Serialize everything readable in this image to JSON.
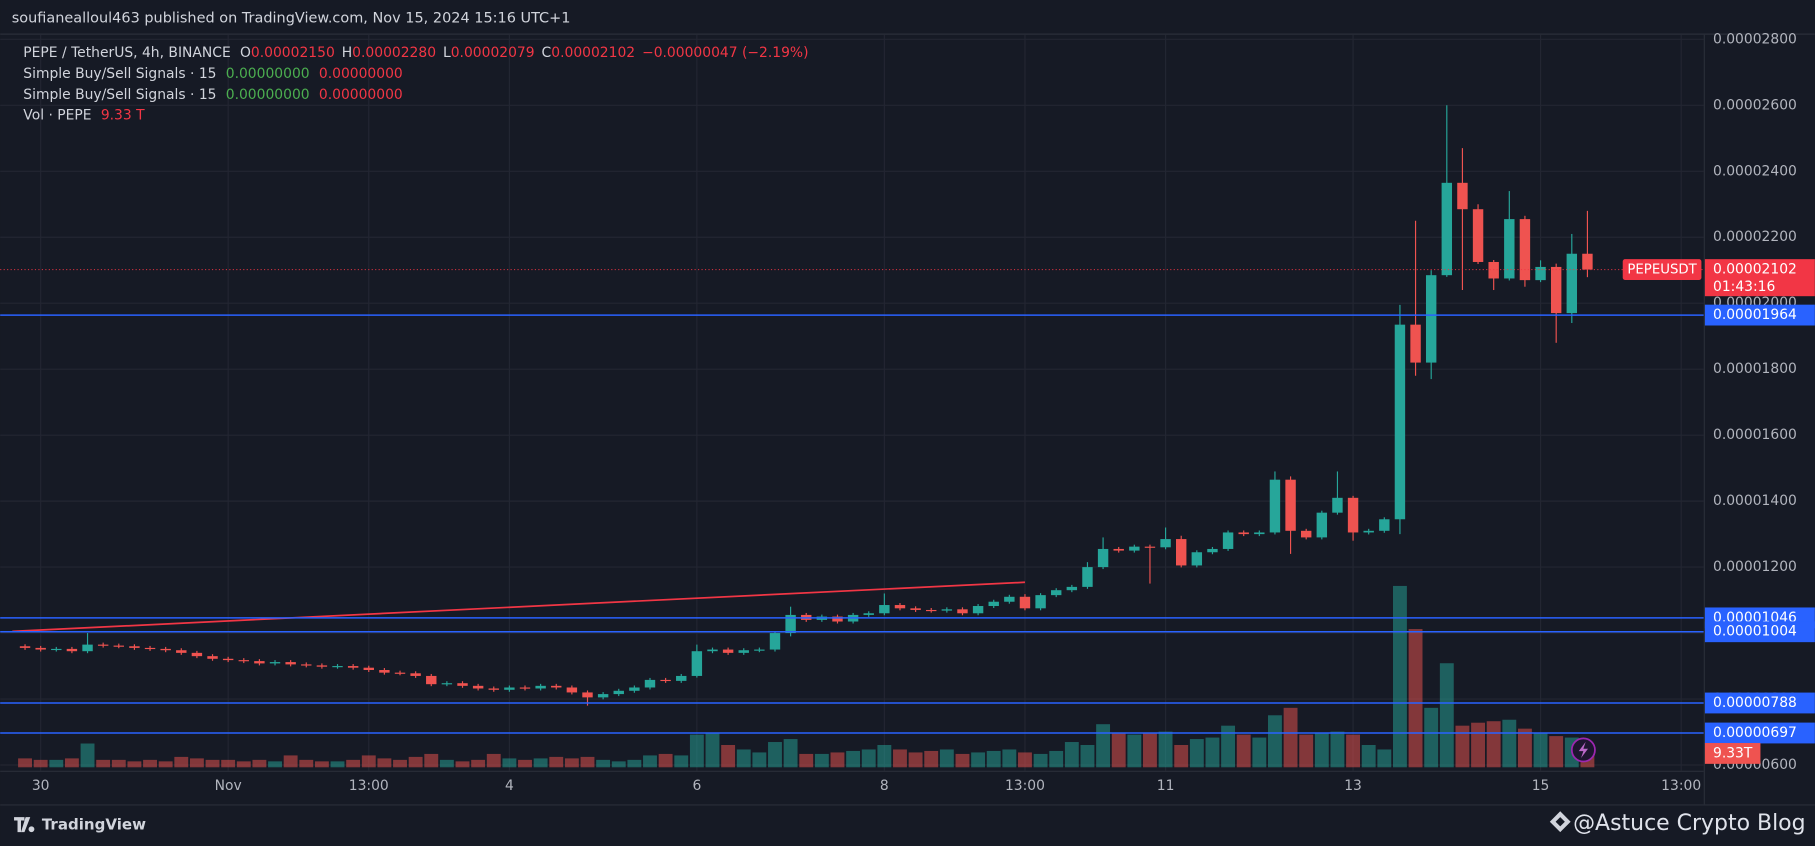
{
  "header": "soufianealloul463 published on TradingView.com, Nov 15, 2024 15:16 UTC+1",
  "chart_data": {
    "type": "candlestick",
    "legend": {
      "title": "PEPE / TetherUS, 4h, BINANCE",
      "fields": [
        {
          "key": "O",
          "value": "0.00002150"
        },
        {
          "key": "H",
          "value": "0.00002280"
        },
        {
          "key": "L",
          "value": "0.00002079"
        },
        {
          "key": "C",
          "value": "0.00002102"
        }
      ],
      "change": "−0.00000047 (−2.19%)"
    },
    "signals": [
      {
        "name": "Simple Buy/Sell Signals · 15",
        "values": [
          "0.00000000",
          "0.00000000"
        ]
      },
      {
        "name": "Simple Buy/Sell Signals · 15",
        "values": [
          "0.00000000",
          "0.00000000"
        ]
      }
    ],
    "volume_name": "Vol · PEPE",
    "volume_value_label": "9.33 T",
    "volume_tag_label": "9.33T",
    "categories": [
      null,
      "30",
      null,
      null,
      null,
      null,
      null,
      null,
      null,
      null,
      null,
      null,
      null,
      "Nov",
      null,
      null,
      null,
      null,
      null,
      null,
      null,
      null,
      "13:00",
      null,
      null,
      null,
      null,
      null,
      null,
      null,
      null,
      "4",
      null,
      null,
      null,
      null,
      null,
      null,
      null,
      null,
      null,
      null,
      null,
      "6",
      null,
      null,
      null,
      null,
      null,
      null,
      null,
      null,
      null,
      null,
      null,
      "8",
      null,
      null,
      null,
      null,
      null,
      null,
      null,
      null,
      "13:00",
      null,
      null,
      null,
      null,
      null,
      null,
      null,
      null,
      "11",
      null,
      null,
      null,
      null,
      null,
      null,
      null,
      null,
      null,
      null,
      null,
      "13",
      null,
      null,
      null,
      null,
      null,
      null,
      null,
      null,
      null,
      null,
      null,
      "15",
      null,
      null,
      null,
      null,
      null,
      null,
      null,
      null,
      "13:00"
    ],
    "ohlc": {
      "open": [
        9.6e-06,
        9.55e-06,
        9.5e-06,
        9.52e-06,
        9.45e-06,
        9.65e-06,
        9.62e-06,
        9.6e-06,
        9.55e-06,
        9.52e-06,
        9.48e-06,
        9.4e-06,
        9.3e-06,
        9.22e-06,
        9.18e-06,
        9.15e-06,
        9.08e-06,
        9.12e-06,
        9.05e-06,
        9.02e-06,
        8.98e-06,
        9e-06,
        8.95e-06,
        8.88e-06,
        8.8e-06,
        8.78e-06,
        8.7e-06,
        8.45e-06,
        8.48e-06,
        8.4e-06,
        8.32e-06,
        8.28e-06,
        8.35e-06,
        8.32e-06,
        8.4e-06,
        8.35e-06,
        8.2e-06,
        8.05e-06,
        8.15e-06,
        8.25e-06,
        8.35e-06,
        8.58e-06,
        8.55e-06,
        8.7e-06,
        9.45e-06,
        9.5e-06,
        9.4e-06,
        9.48e-06,
        9.5e-06,
        1e-05,
        1.055e-05,
        1.04e-05,
        1.05e-05,
        1.035e-05,
        1.055e-05,
        1.06e-05,
        1.085e-05,
        1.075e-05,
        1.07e-05,
        1.068e-05,
        1.072e-05,
        1.06e-05,
        1.082e-05,
        1.095e-05,
        1.11e-05,
        1.075e-05,
        1.115e-05,
        1.13e-05,
        1.14e-05,
        1.2e-05,
        1.255e-05,
        1.25e-05,
        1.262e-05,
        1.26e-05,
        1.285e-05,
        1.205e-05,
        1.245e-05,
        1.255e-05,
        1.305e-05,
        1.3e-05,
        1.305e-05,
        1.465e-05,
        1.31e-05,
        1.29e-05,
        1.365e-05,
        1.41e-05,
        1.305e-05,
        1.31e-05,
        1.345e-05,
        1.935e-05,
        1.82e-05,
        2.085e-05,
        2.365e-05,
        2.285e-05,
        2.125e-05,
        2.075e-05,
        2.255e-05,
        2.07e-05,
        2.11e-05,
        1.97e-05,
        2.15e-05,
        null,
        null,
        null,
        null,
        null,
        null
      ],
      "high": [
        9.66e-06,
        9.61e-06,
        9.58e-06,
        9.58e-06,
        1e-05,
        9.71e-06,
        9.68e-06,
        9.66e-06,
        9.61e-06,
        9.58e-06,
        9.54e-06,
        9.46e-06,
        9.36e-06,
        9.28e-06,
        9.24e-06,
        9.21e-06,
        9.18e-06,
        9.18e-06,
        9.11e-06,
        9.08e-06,
        9.06e-06,
        9.06e-06,
        9.01e-06,
        8.94e-06,
        8.86e-06,
        8.84e-06,
        8.76e-06,
        8.54e-06,
        8.54e-06,
        8.46e-06,
        8.38e-06,
        8.41e-06,
        8.41e-06,
        8.46e-06,
        8.46e-06,
        8.41e-06,
        8.26e-06,
        8.21e-06,
        8.31e-06,
        8.41e-06,
        8.64e-06,
        8.64e-06,
        8.76e-06,
        9.65e-06,
        9.56e-06,
        9.56e-06,
        9.54e-06,
        9.56e-06,
        1.006e-05,
        1.08e-05,
        1.061e-05,
        1.056e-05,
        1.056e-05,
        1.061e-05,
        1.066e-05,
        1.12e-05,
        1.091e-05,
        1.081e-05,
        1.076e-05,
        1.078e-05,
        1.078e-05,
        1.088e-05,
        1.101e-05,
        1.116e-05,
        1.118e-05,
        1.121e-05,
        1.136e-05,
        1.146e-05,
        1.215e-05,
        1.29e-05,
        1.261e-05,
        1.268e-05,
        1.268e-05,
        1.32e-05,
        1.295e-05,
        1.251e-05,
        1.261e-05,
        1.311e-05,
        1.311e-05,
        1.311e-05,
        1.49e-05,
        1.475e-05,
        1.316e-05,
        1.371e-05,
        1.49e-05,
        1.416e-05,
        1.316e-05,
        1.351e-05,
        1.995e-05,
        2.25e-05,
        2.1e-05,
        2.6e-05,
        2.47e-05,
        2.3e-05,
        2.131e-05,
        2.34e-05,
        2.265e-05,
        2.13e-05,
        2.12e-05,
        2.21e-05,
        2.28e-05,
        null,
        null,
        null,
        null,
        null,
        null
      ],
      "low": [
        9.49e-06,
        9.44e-06,
        9.44e-06,
        9.39e-06,
        9.39e-06,
        9.56e-06,
        9.54e-06,
        9.49e-06,
        9.46e-06,
        9.42e-06,
        9.34e-06,
        9.24e-06,
        9.16e-06,
        9.12e-06,
        9.09e-06,
        9.02e-06,
        9.02e-06,
        8.99e-06,
        8.96e-06,
        8.92e-06,
        8.92e-06,
        8.89e-06,
        8.82e-06,
        8.74e-06,
        8.72e-06,
        8.64e-06,
        8.39e-06,
        8.39e-06,
        8.34e-06,
        8.26e-06,
        8.22e-06,
        8.22e-06,
        8.26e-06,
        8.26e-06,
        8.29e-06,
        8.14e-06,
        7.8e-06,
        7.99e-06,
        8.09e-06,
        8.19e-06,
        8.29e-06,
        8.49e-06,
        8.49e-06,
        8.65e-06,
        9.39e-06,
        9.34e-06,
        9.34e-06,
        9.42e-06,
        9.44e-06,
        9.9e-06,
        1.034e-05,
        1.034e-05,
        1.029e-05,
        1.029e-05,
        1.049e-05,
        1.054e-05,
        1.069e-05,
        1.064e-05,
        1.062e-05,
        1.062e-05,
        1.054e-05,
        1.054e-05,
        1.076e-05,
        1.089e-05,
        1.069e-05,
        1.069e-05,
        1.109e-05,
        1.124e-05,
        1.134e-05,
        1.194e-05,
        1.244e-05,
        1.244e-05,
        1.15e-05,
        1.254e-05,
        1.199e-05,
        1.199e-05,
        1.239e-05,
        1.249e-05,
        1.294e-05,
        1.294e-05,
        1.299e-05,
        1.24e-05,
        1.284e-05,
        1.284e-05,
        1.359e-05,
        1.28e-05,
        1.299e-05,
        1.304e-05,
        1.3e-05,
        1.78e-05,
        1.77e-05,
        2.08e-05,
        2.04e-05,
        2.119e-05,
        2.04e-05,
        2.069e-05,
        2.05e-05,
        2.064e-05,
        1.88e-05,
        1.94e-05,
        2.079e-05,
        null,
        null,
        null,
        null,
        null,
        null
      ],
      "close": [
        9.55e-06,
        9.5e-06,
        9.52e-06,
        9.45e-06,
        9.65e-06,
        9.62e-06,
        9.6e-06,
        9.55e-06,
        9.52e-06,
        9.48e-06,
        9.4e-06,
        9.3e-06,
        9.22e-06,
        9.18e-06,
        9.15e-06,
        9.08e-06,
        9.12e-06,
        9.05e-06,
        9.02e-06,
        8.98e-06,
        9e-06,
        8.95e-06,
        8.88e-06,
        8.8e-06,
        8.78e-06,
        8.7e-06,
        8.45e-06,
        8.48e-06,
        8.4e-06,
        8.32e-06,
        8.28e-06,
        8.35e-06,
        8.32e-06,
        8.4e-06,
        8.35e-06,
        8.2e-06,
        8.05e-06,
        8.15e-06,
        8.25e-06,
        8.35e-06,
        8.58e-06,
        8.55e-06,
        8.7e-06,
        9.45e-06,
        9.5e-06,
        9.4e-06,
        9.48e-06,
        9.5e-06,
        1e-05,
        1.055e-05,
        1.04e-05,
        1.05e-05,
        1.035e-05,
        1.055e-05,
        1.06e-05,
        1.085e-05,
        1.075e-05,
        1.07e-05,
        1.068e-05,
        1.072e-05,
        1.06e-05,
        1.082e-05,
        1.095e-05,
        1.11e-05,
        1.075e-05,
        1.115e-05,
        1.13e-05,
        1.14e-05,
        1.2e-05,
        1.255e-05,
        1.25e-05,
        1.262e-05,
        1.26e-05,
        1.285e-05,
        1.205e-05,
        1.245e-05,
        1.255e-05,
        1.305e-05,
        1.3e-05,
        1.305e-05,
        1.465e-05,
        1.31e-05,
        1.29e-05,
        1.365e-05,
        1.41e-05,
        1.305e-05,
        1.31e-05,
        1.345e-05,
        1.935e-05,
        1.82e-05,
        2.085e-05,
        2.365e-05,
        2.285e-05,
        2.125e-05,
        2.075e-05,
        2.255e-05,
        2.07e-05,
        2.11e-05,
        1.97e-05,
        2.15e-05,
        2.102e-05,
        null,
        null,
        null,
        null,
        null,
        null
      ]
    },
    "volume": [
      6,
      5,
      5,
      6,
      16,
      5,
      5,
      4,
      5,
      4,
      7,
      6,
      5,
      5,
      4,
      5,
      4,
      8,
      5,
      4,
      4,
      5,
      8,
      6,
      5,
      7,
      9,
      5,
      4,
      5,
      9,
      6,
      5,
      6,
      7,
      6,
      7,
      5,
      4,
      5,
      8,
      9,
      8,
      22,
      23,
      15,
      12,
      10,
      17,
      19,
      9,
      9,
      10,
      11,
      12,
      15,
      12,
      10,
      11,
      12,
      9,
      10,
      11,
      12,
      10,
      9,
      11,
      17,
      15,
      29,
      23,
      22,
      23,
      24,
      15,
      19,
      20,
      28,
      22,
      20,
      35,
      40,
      22,
      23,
      24,
      22,
      15,
      12,
      122,
      93,
      40,
      70,
      28,
      30,
      31,
      32,
      26,
      23,
      21,
      20,
      9.33,
      null,
      null,
      null,
      null,
      null,
      null
    ],
    "volume_lim": [
      0,
      130
    ],
    "up_color": "#26a69a",
    "down_color": "#ef5350",
    "ylim": [
      5.825e-06,
      2.814e-05
    ],
    "yticks": [
      {
        "value": 6e-06,
        "label": "0.00000600"
      },
      {
        "value": 8e-06,
        "label": "0.00000800"
      },
      {
        "value": 1e-05,
        "label": "0.00001000"
      },
      {
        "value": 1.2e-05,
        "label": "0.00001200"
      },
      {
        "value": 1.4e-05,
        "label": "0.00001400"
      },
      {
        "value": 1.6e-05,
        "label": "0.00001600"
      },
      {
        "value": 1.8e-05,
        "label": "0.00001800"
      },
      {
        "value": 2e-05,
        "label": "0.00002000"
      },
      {
        "value": 2.2e-05,
        "label": "0.00002200"
      },
      {
        "value": 2.4e-05,
        "label": "0.00002400"
      },
      {
        "value": 2.6e-05,
        "label": "0.00002600"
      },
      {
        "value": 2.8e-05,
        "label": "0.00002800"
      }
    ],
    "grid": true,
    "levels": [
      {
        "value": 1.964e-05,
        "label": "0.00001964"
      },
      {
        "value": 1.046e-05,
        "label": "0.00001046"
      },
      {
        "value": 1.004e-05,
        "label": "0.00001004"
      },
      {
        "value": 7.88e-06,
        "label": "0.00000788"
      },
      {
        "value": 6.97e-06,
        "label": "0.00000697"
      }
    ],
    "level_color": "#2962ff",
    "trendline": {
      "from": {
        "index": 0,
        "price": 1.005e-05
      },
      "to": {
        "index": 64,
        "price": 1.154e-05
      },
      "color": "#f23645"
    },
    "price_tag": {
      "symbol": "PEPEUSDT",
      "label": "0.00002102",
      "countdown": "01:43:16",
      "color": "#f23645"
    }
  },
  "footer": {
    "brand": "TradingView",
    "credit": "@Astuce Crypto Blog"
  }
}
